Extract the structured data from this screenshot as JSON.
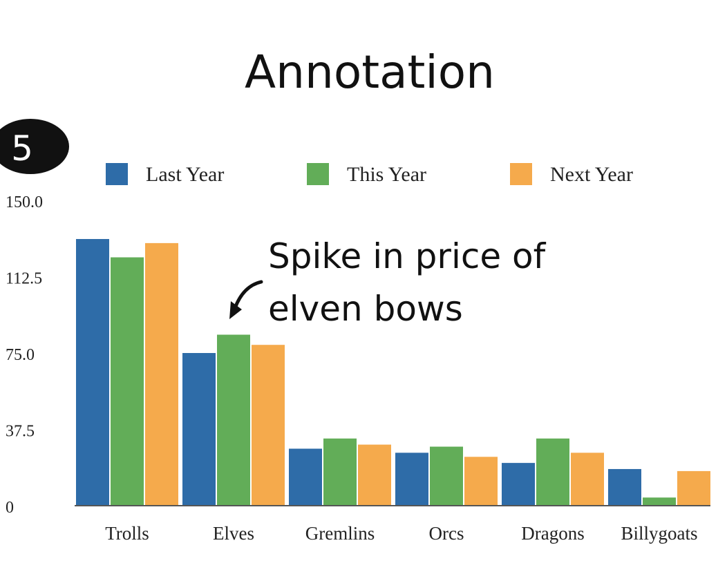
{
  "slide": {
    "badge": "5"
  },
  "colors": {
    "Last Year": "#2e6ca8",
    "This Year": "#62ad58",
    "Next Year": "#f5aa4c"
  },
  "chart_data": {
    "type": "bar",
    "title": "Annotation",
    "categories": [
      "Trolls",
      "Elves",
      "Gremlins",
      "Orcs",
      "Dragons",
      "Billygoats"
    ],
    "series": [
      {
        "name": "Last Year",
        "values": [
          131,
          75,
          28,
          26,
          21,
          18
        ]
      },
      {
        "name": "This Year",
        "values": [
          122,
          84,
          33,
          29,
          33,
          4
        ]
      },
      {
        "name": "Next Year",
        "values": [
          129,
          79,
          30,
          24,
          26,
          17
        ]
      }
    ],
    "ylim": [
      0,
      150
    ],
    "yticks": [
      "0",
      "37.5",
      "75.0",
      "112.5",
      "150.0"
    ],
    "ytick_values": [
      0,
      37.5,
      75,
      112.5,
      150
    ],
    "legend_position": "top",
    "grid": false,
    "annotation": {
      "lines": [
        "Spike in price of",
        "elven bows"
      ],
      "target_category": "Elves"
    }
  }
}
